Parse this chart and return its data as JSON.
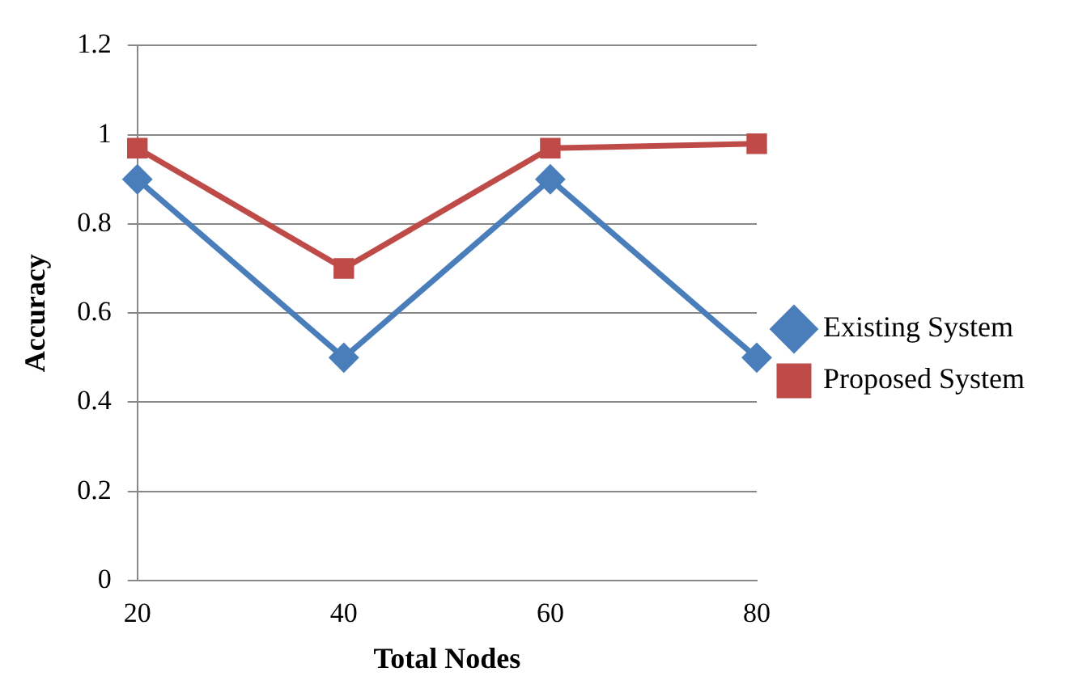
{
  "chart_data": {
    "type": "line",
    "xlabel": "Total Nodes",
    "ylabel": "Accuracy",
    "categories": [
      "20",
      "40",
      "60",
      "80"
    ],
    "series": [
      {
        "name": "Existing System",
        "color": "#4a7ebb",
        "marker": "diamond",
        "values": [
          0.9,
          0.5,
          0.9,
          0.5
        ]
      },
      {
        "name": "Proposed System",
        "color": "#be4b48",
        "marker": "square",
        "values": [
          0.97,
          0.7,
          0.97,
          0.98
        ]
      }
    ],
    "ylim": [
      0,
      1.2
    ],
    "yticks": [
      0,
      0.2,
      0.4,
      0.6,
      0.8,
      1,
      1.2
    ],
    "grid": "y",
    "legend": "right",
    "line_style": "solid"
  }
}
